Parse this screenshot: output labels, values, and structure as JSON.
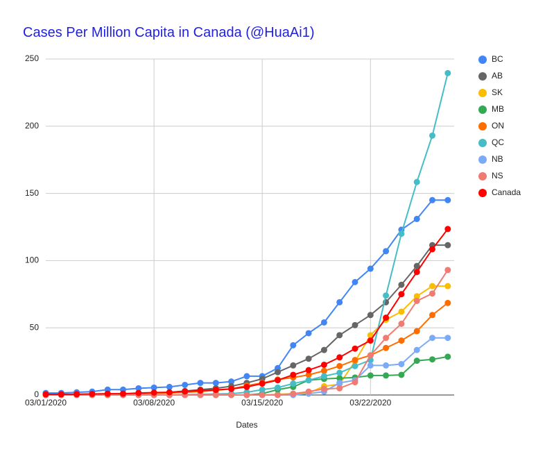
{
  "chart_data": {
    "type": "line",
    "title": "Cases Per Million Capita in Canada (@HuaAi1)",
    "x_label": "Dates",
    "categories": [
      "03/01/2020",
      null,
      null,
      null,
      null,
      null,
      null,
      "03/08/2020",
      null,
      null,
      null,
      null,
      null,
      null,
      "03/15/2020",
      null,
      null,
      null,
      null,
      null,
      null,
      "03/22/2020",
      null,
      null,
      null,
      null,
      null
    ],
    "ylim": [
      0,
      250
    ],
    "yticks": [
      0,
      50,
      100,
      150,
      200,
      250
    ],
    "grid": true,
    "legend": "right",
    "series": [
      {
        "name": "BC",
        "color": "#4285f4",
        "values": [
          1.5,
          1.5,
          2,
          2.5,
          4,
          4,
          5,
          5.5,
          6,
          7.5,
          9,
          9,
          10,
          14,
          14,
          20,
          37,
          46,
          54,
          69,
          84,
          94,
          107,
          123,
          131,
          145,
          145
        ]
      },
      {
        "name": "AB",
        "color": "#666666",
        "values": [
          0,
          0,
          0,
          0,
          0,
          0.5,
          1,
          1.5,
          2,
          3,
          4,
          5,
          6.5,
          9,
          12,
          17,
          22,
          27,
          33.5,
          44.5,
          52,
          59.5,
          69,
          82,
          96,
          111.5,
          111.5
        ]
      },
      {
        "name": "SK",
        "color": "#fbbc04",
        "values": [
          0,
          0,
          0,
          0,
          0,
          0,
          0,
          0,
          0,
          0,
          0,
          0,
          0,
          0,
          0,
          0.5,
          1,
          1.5,
          6.5,
          8,
          25,
          44.5,
          56,
          62,
          73.5,
          81,
          81
        ]
      },
      {
        "name": "MB",
        "color": "#34a853",
        "values": [
          0,
          0,
          0,
          0,
          0,
          0,
          0,
          0,
          0,
          0,
          0,
          0,
          0,
          0,
          1,
          4,
          6,
          11,
          12,
          12.5,
          13,
          14.5,
          14.5,
          15,
          25.5,
          26.5,
          28.5
        ]
      },
      {
        "name": "ON",
        "color": "#ff6d01",
        "values": [
          0.3,
          0.3,
          0.4,
          0.5,
          0.7,
          0.8,
          1,
          1.2,
          1.5,
          2,
          2.5,
          3.5,
          4.5,
          7,
          9,
          11.5,
          13,
          15,
          18,
          21.5,
          26,
          29.5,
          35,
          40.5,
          47.5,
          59.5,
          68.5
        ]
      },
      {
        "name": "QC",
        "color": "#46bdc6",
        "values": [
          0,
          0,
          0,
          0,
          0,
          0,
          0,
          0,
          0,
          0.3,
          0.5,
          0.8,
          1,
          2,
          4,
          5.5,
          8.5,
          11,
          14,
          16.5,
          21.5,
          26,
          74,
          120,
          158.5,
          193,
          239.5
        ]
      },
      {
        "name": "NB",
        "color": "#7baaf7",
        "values": [
          0,
          0,
          0,
          0,
          0,
          0,
          0,
          0,
          0,
          0,
          0,
          0,
          0,
          0,
          0,
          0,
          0,
          1,
          2.5,
          9,
          11,
          22,
          22,
          23,
          33.5,
          42.5,
          42.5
        ]
      },
      {
        "name": "NS",
        "color": "#f07b72",
        "values": [
          0,
          0,
          0,
          0,
          0,
          0,
          0,
          0,
          0,
          0,
          0,
          0,
          0,
          0,
          0,
          0,
          1,
          2.5,
          4.5,
          5,
          9.5,
          29.5,
          42.5,
          53,
          70,
          75.5,
          93
        ]
      },
      {
        "name": "Canada",
        "color": "#ff0000",
        "values": [
          0.5,
          0.5,
          0.6,
          0.8,
          1,
          1,
          1.5,
          1.8,
          2,
          2.6,
          3.3,
          3.8,
          4.5,
          6,
          8.5,
          11,
          15,
          18.5,
          22.5,
          28,
          34.5,
          40.5,
          57.5,
          75,
          91.5,
          108.5,
          123.5
        ]
      }
    ]
  }
}
